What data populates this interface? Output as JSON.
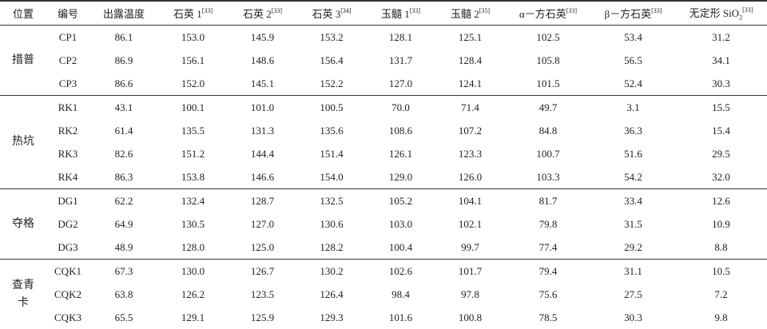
{
  "header": [
    {
      "text": "位置"
    },
    {
      "text": "编号"
    },
    {
      "text": "出露温度"
    },
    {
      "text": "石英 1",
      "ref": "[33]"
    },
    {
      "text": "石英 2",
      "ref": "[33]"
    },
    {
      "text": "石英 3",
      "ref": "[34]"
    },
    {
      "text": "玉髓 1",
      "ref": "[33]"
    },
    {
      "text": "玉髓 2",
      "ref": "[35]"
    },
    {
      "text": "α－方石英",
      "ref": "[33]"
    },
    {
      "text": "β－方石英",
      "ref": "[33]"
    },
    {
      "text": "无定形 SiO",
      "sub": "2",
      "ref": "[33]"
    }
  ],
  "groups": [
    {
      "location": "措普",
      "rows": [
        [
          "CP1",
          "86.1",
          "153.0",
          "145.9",
          "153.2",
          "128.1",
          "125.1",
          "102.5",
          "53.4",
          "31.2"
        ],
        [
          "CP2",
          "86.9",
          "156.1",
          "148.6",
          "156.4",
          "131.7",
          "128.4",
          "105.8",
          "56.5",
          "34.1"
        ],
        [
          "CP3",
          "86.6",
          "152.0",
          "145.1",
          "152.2",
          "127.0",
          "124.1",
          "101.5",
          "52.4",
          "30.3"
        ]
      ]
    },
    {
      "location": "热坑",
      "rows": [
        [
          "RK1",
          "43.1",
          "100.1",
          "101.0",
          "100.5",
          "70.0",
          "71.4",
          "49.7",
          "3.1",
          "15.5"
        ],
        [
          "RK2",
          "61.4",
          "135.5",
          "131.3",
          "135.6",
          "108.6",
          "107.2",
          "84.8",
          "36.3",
          "15.4"
        ],
        [
          "RK3",
          "82.6",
          "151.2",
          "144.4",
          "151.4",
          "126.1",
          "123.3",
          "100.7",
          "51.6",
          "29.5"
        ],
        [
          "RK4",
          "86.3",
          "153.8",
          "146.6",
          "154.0",
          "129.0",
          "126.0",
          "103.3",
          "54.2",
          "32.0"
        ]
      ]
    },
    {
      "location": "夺格",
      "rows": [
        [
          "DG1",
          "62.2",
          "132.4",
          "128.7",
          "132.5",
          "105.2",
          "104.1",
          "81.7",
          "33.4",
          "12.6"
        ],
        [
          "DG2",
          "64.9",
          "130.5",
          "127.0",
          "130.6",
          "103.0",
          "102.1",
          "79.8",
          "31.5",
          "10.9"
        ],
        [
          "DG3",
          "48.9",
          "128.0",
          "125.0",
          "128.2",
          "100.4",
          "99.7",
          "77.4",
          "29.2",
          "8.8"
        ]
      ]
    },
    {
      "location": "查青卡",
      "rows": [
        [
          "CQK1",
          "67.3",
          "130.0",
          "126.7",
          "130.2",
          "102.6",
          "101.7",
          "79.4",
          "31.1",
          "10.5"
        ],
        [
          "CQK2",
          "63.8",
          "126.2",
          "123.5",
          "126.4",
          "98.4",
          "97.8",
          "75.6",
          "27.5",
          "7.2"
        ],
        [
          "CQK3",
          "65.5",
          "129.1",
          "125.9",
          "129.3",
          "101.6",
          "100.8",
          "78.5",
          "30.3",
          "9.8"
        ]
      ]
    }
  ]
}
